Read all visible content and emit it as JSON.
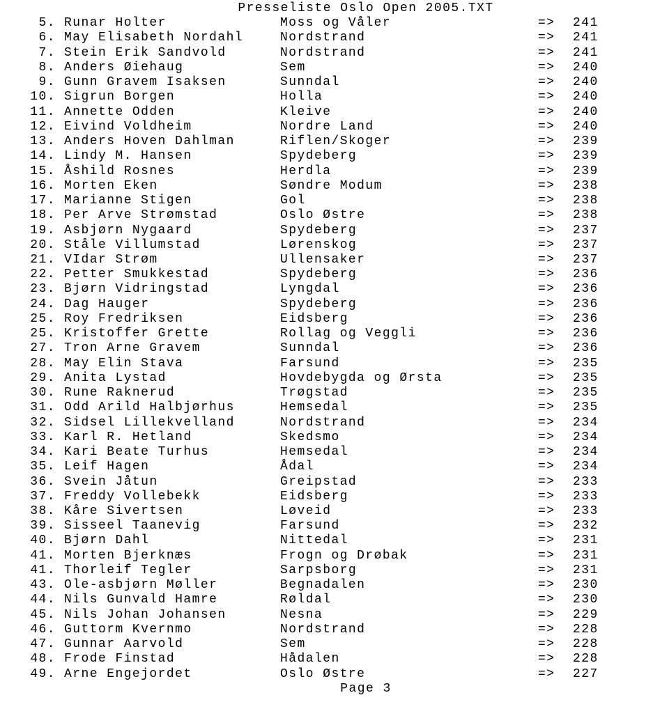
{
  "header": "Presseliste Oslo Open 2005.TXT",
  "footer": "Page 3",
  "arrow": "=>",
  "rows": [
    {
      "rank": "5.",
      "name": "Runar Holter",
      "club": "Moss og Våler",
      "score": "241"
    },
    {
      "rank": "6.",
      "name": "May Elisabeth Nordahl",
      "club": "Nordstrand",
      "score": "241"
    },
    {
      "rank": "7.",
      "name": "Stein Erik Sandvold",
      "club": "Nordstrand",
      "score": "241"
    },
    {
      "rank": "8.",
      "name": "Anders Øiehaug",
      "club": "Sem",
      "score": "240"
    },
    {
      "rank": "9.",
      "name": "Gunn Gravem Isaksen",
      "club": "Sunndal",
      "score": "240"
    },
    {
      "rank": "10.",
      "name": "Sigrun Borgen",
      "club": "Holla",
      "score": "240"
    },
    {
      "rank": "11.",
      "name": "Annette Odden",
      "club": "Kleive",
      "score": "240"
    },
    {
      "rank": "12.",
      "name": "Eivind Voldheim",
      "club": "Nordre Land",
      "score": "240"
    },
    {
      "rank": "13.",
      "name": "Anders Hoven Dahlman",
      "club": "Riflen/Skoger",
      "score": "239"
    },
    {
      "rank": "14.",
      "name": "Lindy M. Hansen",
      "club": "Spydeberg",
      "score": "239"
    },
    {
      "rank": "15.",
      "name": "Åshild Rosnes",
      "club": "Herdla",
      "score": "239"
    },
    {
      "rank": "16.",
      "name": "Morten Eken",
      "club": "Søndre Modum",
      "score": "238"
    },
    {
      "rank": "17.",
      "name": "Marianne Stigen",
      "club": "Gol",
      "score": "238"
    },
    {
      "rank": "18.",
      "name": "Per Arve Strømstad",
      "club": "Oslo Østre",
      "score": "238"
    },
    {
      "rank": "19.",
      "name": "Asbjørn Nygaard",
      "club": "Spydeberg",
      "score": "237"
    },
    {
      "rank": "20.",
      "name": "Ståle Villumstad",
      "club": "Lørenskog",
      "score": "237"
    },
    {
      "rank": "21.",
      "name": "VIdar Strøm",
      "club": "Ullensaker",
      "score": "237"
    },
    {
      "rank": "22.",
      "name": "Petter Smukkestad",
      "club": "Spydeberg",
      "score": "236"
    },
    {
      "rank": "23.",
      "name": "Bjørn Vidringstad",
      "club": "Lyngdal",
      "score": "236"
    },
    {
      "rank": "24.",
      "name": "Dag Hauger",
      "club": "Spydeberg",
      "score": "236"
    },
    {
      "rank": "25.",
      "name": "Roy Fredriksen",
      "club": "Eidsberg",
      "score": "236"
    },
    {
      "rank": "25.",
      "name": "Kristoffer Grette",
      "club": "Rollag og Veggli",
      "score": "236"
    },
    {
      "rank": "27.",
      "name": "Tron Arne Gravem",
      "club": "Sunndal",
      "score": "236"
    },
    {
      "rank": "28.",
      "name": "May Elin Stava",
      "club": "Farsund",
      "score": "235"
    },
    {
      "rank": "29.",
      "name": "Anita Lystad",
      "club": "Hovdebygda og Ørsta",
      "score": "235"
    },
    {
      "rank": "30.",
      "name": "Rune Raknerud",
      "club": "Trøgstad",
      "score": "235"
    },
    {
      "rank": "31.",
      "name": "Odd Arild Halbjørhus",
      "club": "Hemsedal",
      "score": "235"
    },
    {
      "rank": "32.",
      "name": "Sidsel Lillekvelland",
      "club": "Nordstrand",
      "score": "234"
    },
    {
      "rank": "33.",
      "name": "Karl R. Hetland",
      "club": "Skedsmo",
      "score": "234"
    },
    {
      "rank": "34.",
      "name": "Kari Beate Turhus",
      "club": "Hemsedal",
      "score": "234"
    },
    {
      "rank": "35.",
      "name": "Leif Hagen",
      "club": "Ådal",
      "score": "234"
    },
    {
      "rank": "36.",
      "name": "Svein Jåtun",
      "club": "Greipstad",
      "score": "233"
    },
    {
      "rank": "37.",
      "name": "Freddy Vollebekk",
      "club": "Eidsberg",
      "score": "233"
    },
    {
      "rank": "38.",
      "name": "Kåre Sivertsen",
      "club": "Løveid",
      "score": "233"
    },
    {
      "rank": "39.",
      "name": "Sisseel Taanevig",
      "club": "Farsund",
      "score": "232"
    },
    {
      "rank": "40.",
      "name": "Bjørn Dahl",
      "club": "Nittedal",
      "score": "231"
    },
    {
      "rank": "41.",
      "name": "Morten Bjerknæs",
      "club": "Frogn og Drøbak",
      "score": "231"
    },
    {
      "rank": "41.",
      "name": "Thorleif Tegler",
      "club": "Sarpsborg",
      "score": "231"
    },
    {
      "rank": "43.",
      "name": "Ole-asbjørn Møller",
      "club": "Begnadalen",
      "score": "230"
    },
    {
      "rank": "44.",
      "name": "Nils Gunvald Hamre",
      "club": "Røldal",
      "score": "230"
    },
    {
      "rank": "45.",
      "name": "Nils Johan Johansen",
      "club": "Nesna",
      "score": "229"
    },
    {
      "rank": "46.",
      "name": "Guttorm Kvernmo",
      "club": "Nordstrand",
      "score": "228"
    },
    {
      "rank": "47.",
      "name": "Gunnar Aarvold",
      "club": "Sem",
      "score": "228"
    },
    {
      "rank": "48.",
      "name": "Frode Finstad",
      "club": "Hådalen",
      "score": "228"
    },
    {
      "rank": "49.",
      "name": "Arne Engejordet",
      "club": "Oslo Østre",
      "score": "227"
    }
  ]
}
